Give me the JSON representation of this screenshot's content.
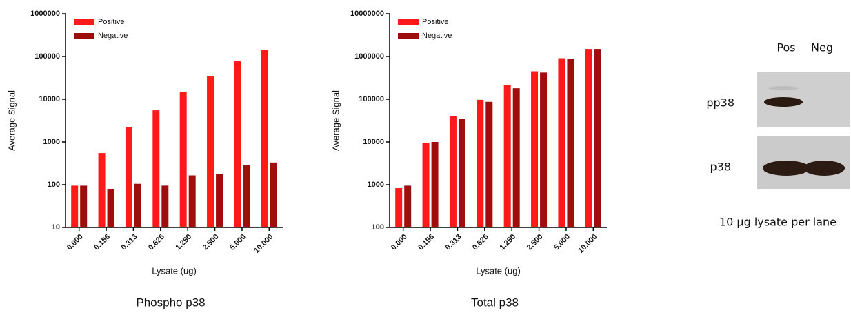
{
  "chart_data": [
    {
      "type": "bar",
      "title": "Phospho p38",
      "x_label": "Lysate (ug)",
      "y_label": "Average Signal",
      "categories": [
        "0.000",
        "0.156",
        "0.313",
        "0.625",
        "1.250",
        "2.500",
        "5.000",
        "10.000"
      ],
      "series": [
        {
          "name": "Positive",
          "color": "#ff1a1a",
          "values": [
            95,
            550,
            2250,
            5500,
            15000,
            34000,
            77000,
            140000
          ]
        },
        {
          "name": "Negative",
          "color": "#a00d0d",
          "values": [
            95,
            80,
            105,
            95,
            165,
            180,
            285,
            330
          ]
        }
      ],
      "ylim": [
        10,
        1000000
      ],
      "yticks": [
        10,
        100,
        1000,
        10000,
        100000,
        1000000
      ],
      "log_scale": true,
      "legend": "upper left"
    },
    {
      "type": "bar",
      "title": "Total p38",
      "x_label": "Lysate (ug)",
      "y_label": "Average Signal",
      "categories": [
        "0.000",
        "0.156",
        "0.313",
        "0.625",
        "1.250",
        "2.500",
        "5.000",
        "10.000"
      ],
      "series": [
        {
          "name": "Positive",
          "color": "#ff1a1a",
          "values": [
            830,
            9300,
            40000,
            97000,
            210000,
            450000,
            910000,
            1500000
          ]
        },
        {
          "name": "Negative",
          "color": "#a00d0d",
          "values": [
            950,
            10000,
            35000,
            87000,
            180000,
            420000,
            870000,
            1500000
          ]
        }
      ],
      "ylim": [
        100,
        10000000
      ],
      "yticks": [
        100,
        1000,
        10000,
        100000,
        1000000,
        10000000
      ],
      "log_scale": true,
      "legend": "upper left"
    }
  ],
  "blot": {
    "lanes": [
      "Pos",
      "Neg"
    ],
    "rows": [
      "pp38",
      "p38"
    ],
    "caption": "10 µg lysate per lane"
  }
}
